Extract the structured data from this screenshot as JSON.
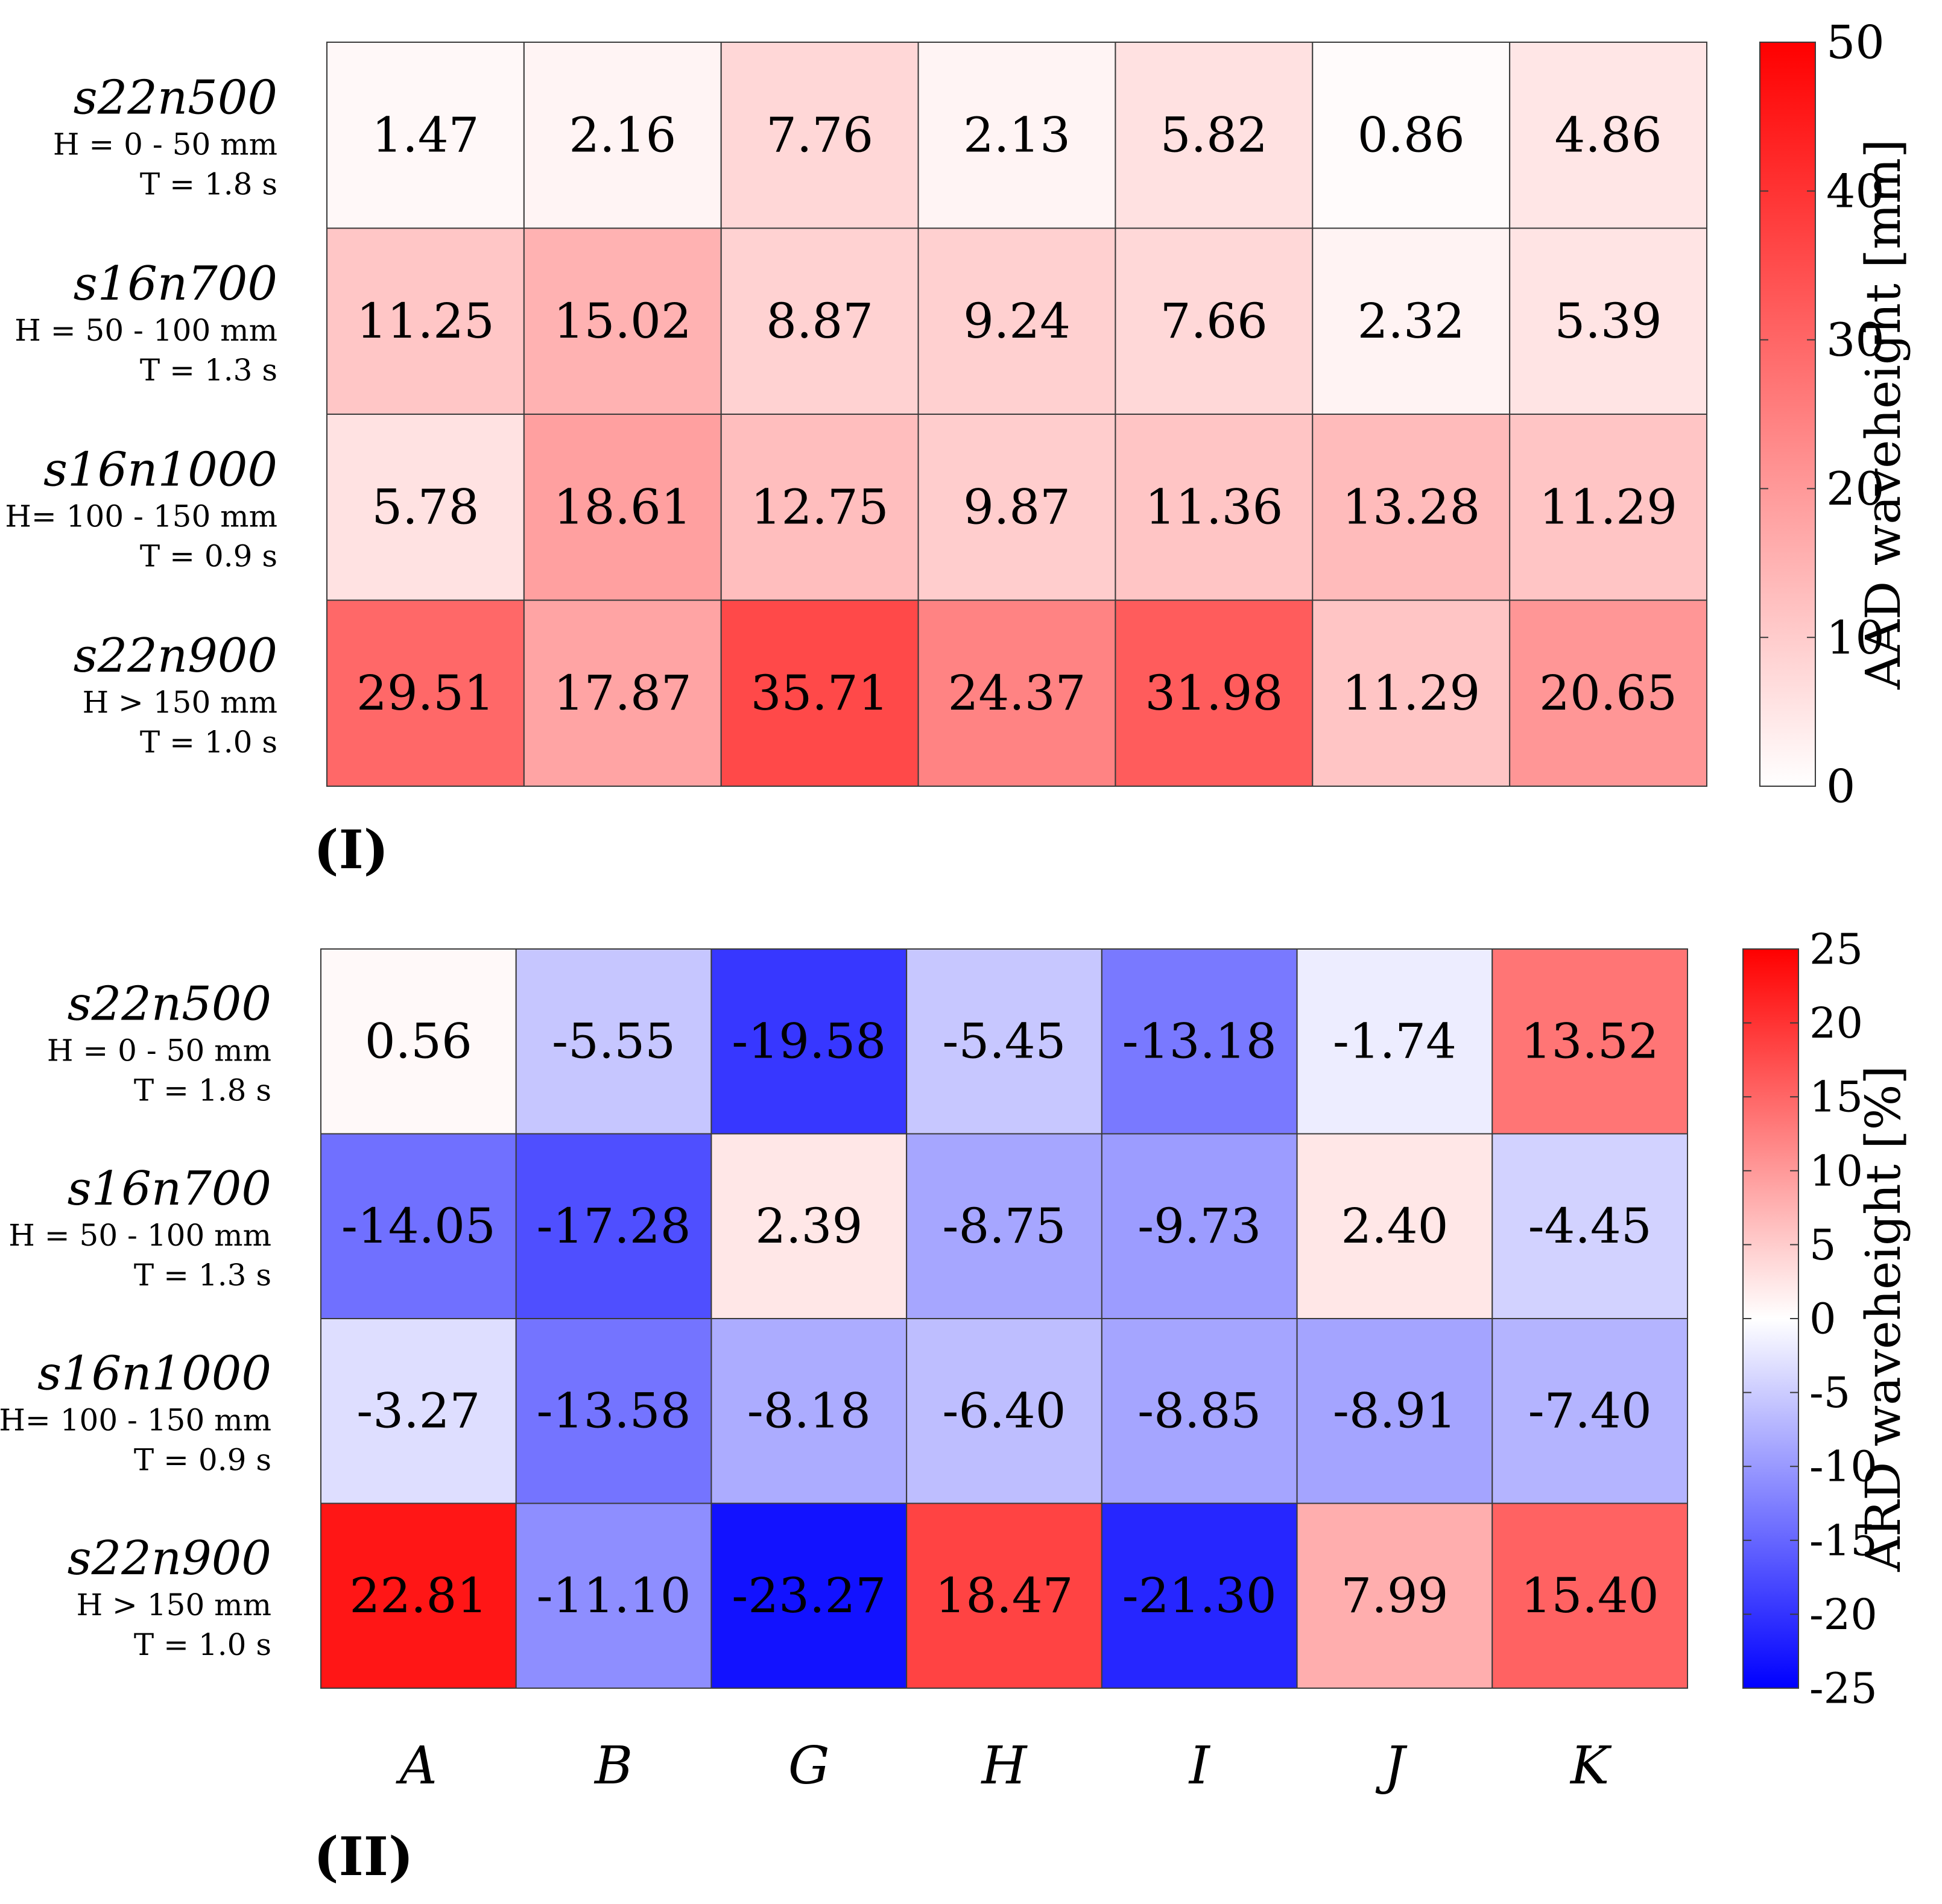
{
  "chart_data": [
    {
      "type": "heatmap",
      "panel_label": "(I)",
      "colorbar": {
        "label": "AAD waveheight [mm]",
        "range": [
          0,
          50
        ],
        "ticks": [
          "0",
          "10",
          "20",
          "30",
          "40",
          "50"
        ],
        "tick_values": [
          0,
          10,
          20,
          30,
          40,
          50
        ],
        "colormap": "white-to-red",
        "low_color": "#ffffff",
        "high_color": "#ff0000"
      },
      "columns": [
        "A",
        "B",
        "G",
        "H",
        "I",
        "J",
        "K"
      ],
      "rows": [
        {
          "name": "s22n500",
          "line1": "H = 0 - 50 mm",
          "line2": "T = 1.8 s"
        },
        {
          "name": "s16n700",
          "line1": "H = 50 - 100 mm",
          "line2": "T = 1.3 s"
        },
        {
          "name": "s16n1000",
          "line1": "H= 100 - 150 mm",
          "line2": "T = 0.9 s"
        },
        {
          "name": "s22n900",
          "line1": "H  > 150 mm",
          "line2": "T = 1.0 s"
        }
      ],
      "labels": [
        [
          "1.47",
          "2.16",
          "7.76",
          "2.13",
          "5.82",
          "0.86",
          "4.86"
        ],
        [
          "11.25",
          "15.02",
          "8.87",
          "9.24",
          "7.66",
          "2.32",
          "5.39"
        ],
        [
          "5.78",
          "18.61",
          "12.75",
          "9.87",
          "11.36",
          "13.28",
          "11.29"
        ],
        [
          "29.51",
          "17.87",
          "35.71",
          "24.37",
          "31.98",
          "11.29",
          "20.65"
        ]
      ],
      "values": [
        [
          1.47,
          2.16,
          7.76,
          2.13,
          5.82,
          0.86,
          4.86
        ],
        [
          11.25,
          15.02,
          8.87,
          9.24,
          7.66,
          2.32,
          5.39
        ],
        [
          5.78,
          18.61,
          12.75,
          9.87,
          11.36,
          13.28,
          11.29
        ],
        [
          29.51,
          17.87,
          35.71,
          24.37,
          31.98,
          11.29,
          20.65
        ]
      ]
    },
    {
      "type": "heatmap",
      "panel_label": "(II)",
      "colorbar": {
        "label": "ARD waveheight [%]",
        "range": [
          -25,
          25
        ],
        "ticks": [
          "-25",
          "-20",
          "-15",
          "-10",
          "-5",
          "0",
          "5",
          "10",
          "15",
          "20",
          "25"
        ],
        "tick_values": [
          -25,
          -20,
          -15,
          -10,
          -5,
          0,
          5,
          10,
          15,
          20,
          25
        ],
        "colormap": "blue-white-red",
        "low_color": "#0000ff",
        "mid_color": "#ffffff",
        "high_color": "#ff0000"
      },
      "columns": [
        "A",
        "B",
        "G",
        "H",
        "I",
        "J",
        "K"
      ],
      "rows": [
        {
          "name": "s22n500",
          "line1": "H = 0 - 50 mm",
          "line2": "T = 1.8 s"
        },
        {
          "name": "s16n700",
          "line1": "H = 50 - 100 mm",
          "line2": "T = 1.3 s"
        },
        {
          "name": "s16n1000",
          "line1": "H= 100 - 150 mm",
          "line2": "T = 0.9 s"
        },
        {
          "name": "s22n900",
          "line1": "H > 150 mm",
          "line2": "T = 1.0 s"
        }
      ],
      "labels": [
        [
          "0.56",
          "-5.55",
          "-19.58",
          "-5.45",
          "-13.18",
          "-1.74",
          "13.52"
        ],
        [
          "-14.05",
          "-17.28",
          "2.39",
          "-8.75",
          "-9.73",
          "2.40",
          "-4.45"
        ],
        [
          "-3.27",
          "-13.58",
          "-8.18",
          "-6.40",
          "-8.85",
          "-8.91",
          "-7.40"
        ],
        [
          "22.81",
          "-11.10",
          "-23.27",
          "18.47",
          "-21.30",
          "7.99",
          "15.40"
        ]
      ],
      "values": [
        [
          0.56,
          -5.55,
          -19.58,
          -5.45,
          -13.18,
          -1.74,
          13.52
        ],
        [
          -14.05,
          -17.28,
          2.39,
          -8.75,
          -9.73,
          2.4,
          -4.45
        ],
        [
          -3.27,
          -13.58,
          -8.18,
          -6.4,
          -8.85,
          -8.91,
          -7.4
        ],
        [
          22.81,
          -11.1,
          -23.27,
          18.47,
          -21.3,
          7.99,
          15.4
        ]
      ]
    }
  ]
}
